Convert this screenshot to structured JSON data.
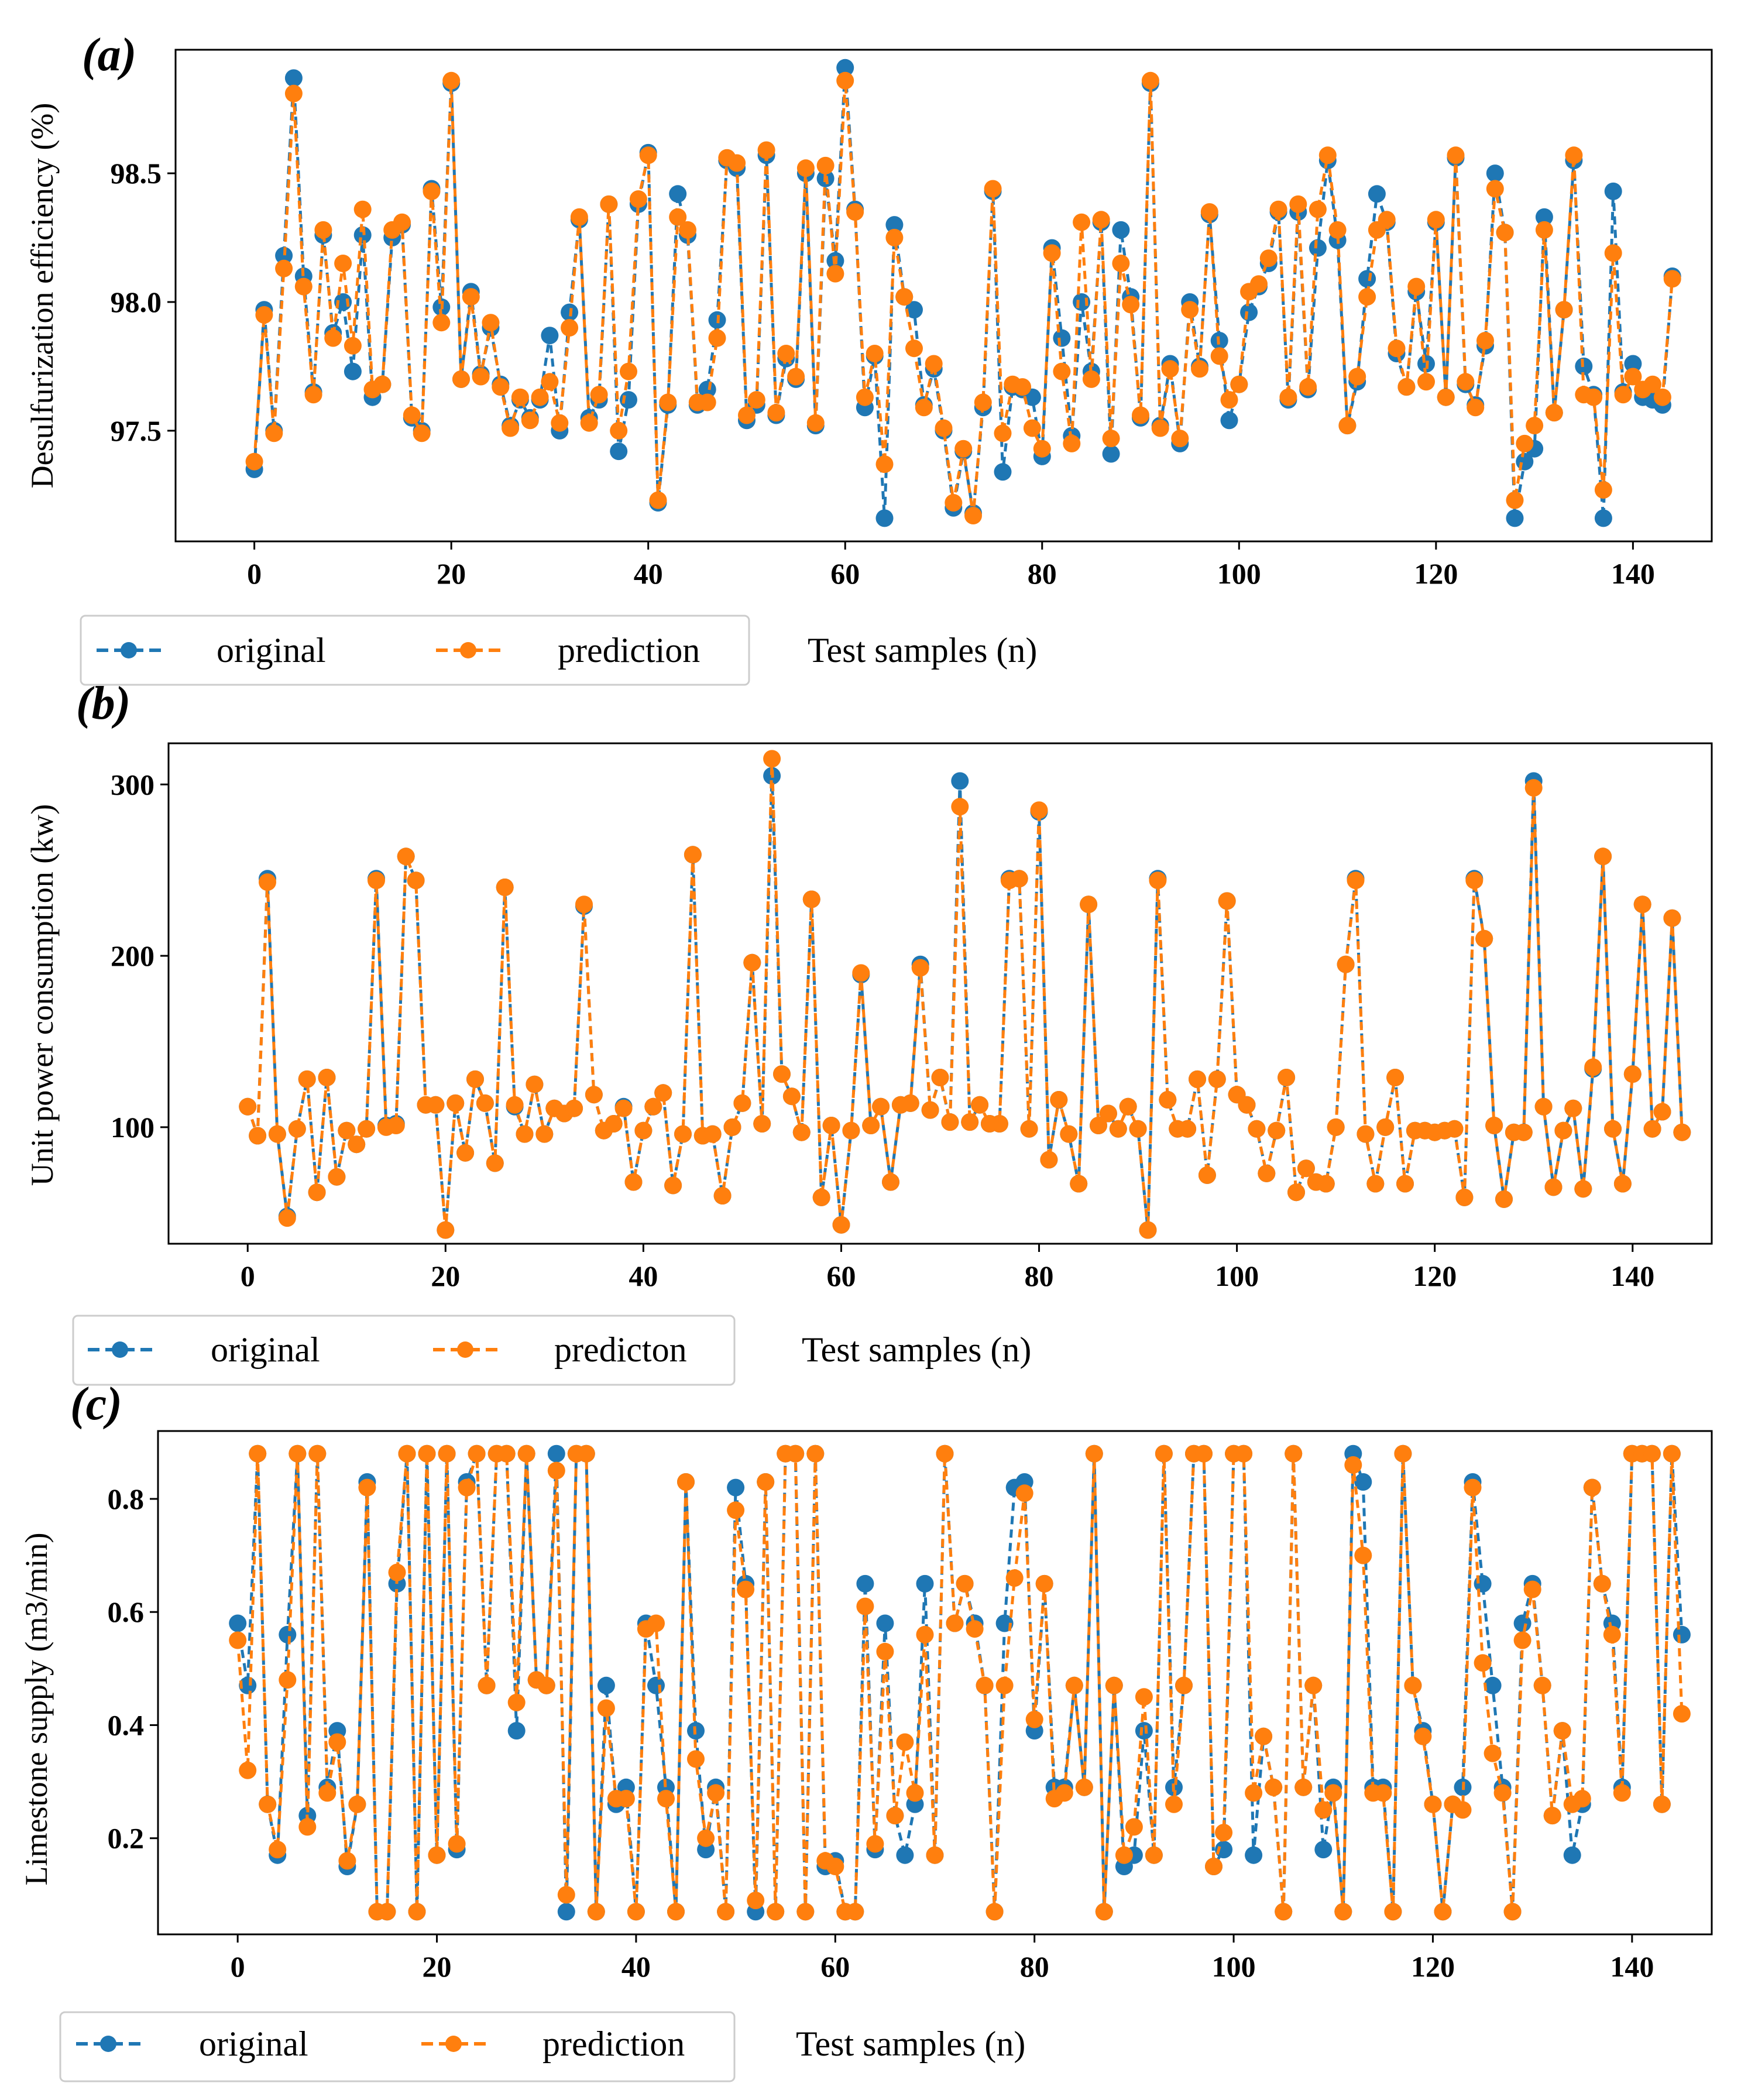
{
  "colors": {
    "original": "#1f77b4",
    "prediction": "#ff7f0e"
  },
  "chart_data": [
    {
      "panel": "(a)",
      "type": "line",
      "xlabel": "Test samples (n)",
      "ylabel": "Desulfurization efficiency (%)",
      "xlim": [
        -8,
        148
      ],
      "ylim": [
        97.07,
        98.98
      ],
      "xticks": [
        0,
        20,
        40,
        60,
        80,
        100,
        120,
        140
      ],
      "yticks": [
        97.5,
        98.0,
        98.5
      ],
      "ytick_labels": [
        "97.5",
        "98.0",
        "98.5"
      ],
      "legend": [
        "original",
        "prediction"
      ],
      "legend_placement": "below-left",
      "series": [
        {
          "name": "original",
          "values": [
            97.35,
            97.97,
            97.5,
            98.18,
            98.87,
            98.1,
            97.65,
            98.26,
            97.88,
            98.0,
            97.73,
            98.26,
            97.63,
            97.68,
            98.25,
            98.3,
            97.55,
            97.5,
            98.44,
            97.98,
            98.85,
            97.7,
            98.04,
            97.72,
            97.9,
            97.68,
            97.52,
            97.62,
            97.55,
            97.62,
            97.87,
            97.5,
            97.96,
            98.32,
            97.55,
            97.62,
            98.38,
            97.42,
            97.62,
            98.38,
            98.58,
            97.22,
            97.6,
            98.42,
            98.26,
            97.6,
            97.66,
            97.93,
            98.55,
            98.52,
            97.54,
            97.6,
            98.57,
            97.56,
            97.78,
            97.7,
            98.5,
            97.52,
            98.48,
            98.16,
            98.91,
            98.36,
            97.59,
            97.79,
            97.16,
            98.3,
            98.02,
            97.97,
            97.6,
            97.74,
            97.5,
            97.2,
            97.42,
            97.18,
            97.59,
            98.43,
            97.34,
            97.67,
            97.66,
            97.63,
            97.4,
            98.21,
            97.86,
            97.48,
            98.0,
            97.73,
            98.31,
            97.41,
            98.28,
            98.02,
            97.55,
            98.85,
            97.52,
            97.76,
            97.45,
            98.0,
            97.75,
            98.34,
            97.85,
            97.54,
            97.68,
            97.96,
            98.06,
            98.15,
            98.35,
            97.62,
            98.35,
            97.66,
            98.21,
            98.55,
            98.24,
            97.52,
            97.69,
            98.09,
            98.42,
            98.31,
            97.8,
            97.67,
            98.04,
            97.76,
            98.31,
            97.63,
            98.56,
            97.68,
            97.6,
            97.83,
            98.5,
            98.27,
            97.16,
            97.38,
            97.43,
            98.33,
            97.57,
            97.97,
            98.55,
            97.75,
            97.64,
            97.16,
            98.43,
            97.65,
            97.76,
            97.63,
            97.62,
            97.6,
            98.1
          ]
        },
        {
          "name": "prediction",
          "values": [
            97.38,
            97.95,
            97.49,
            98.13,
            98.81,
            98.06,
            97.64,
            98.28,
            97.86,
            98.15,
            97.83,
            98.36,
            97.66,
            97.68,
            98.28,
            98.31,
            97.56,
            97.49,
            98.43,
            97.92,
            98.86,
            97.7,
            98.02,
            97.71,
            97.92,
            97.67,
            97.51,
            97.63,
            97.54,
            97.63,
            97.69,
            97.53,
            97.9,
            98.33,
            97.53,
            97.64,
            98.38,
            97.5,
            97.73,
            98.4,
            98.57,
            97.23,
            97.61,
            98.33,
            98.28,
            97.61,
            97.61,
            97.86,
            98.56,
            98.54,
            97.56,
            97.62,
            98.59,
            97.57,
            97.8,
            97.71,
            98.52,
            97.53,
            98.53,
            98.11,
            98.86,
            98.35,
            97.63,
            97.8,
            97.37,
            98.25,
            98.02,
            97.82,
            97.59,
            97.76,
            97.51,
            97.22,
            97.43,
            97.17,
            97.61,
            98.44,
            97.49,
            97.68,
            97.67,
            97.51,
            97.43,
            98.19,
            97.73,
            97.45,
            98.31,
            97.7,
            98.32,
            97.47,
            98.15,
            97.99,
            97.56,
            98.86,
            97.51,
            97.74,
            97.47,
            97.97,
            97.74,
            98.35,
            97.79,
            97.62,
            97.68,
            98.04,
            98.07,
            98.17,
            98.36,
            97.63,
            98.38,
            97.67,
            98.36,
            98.57,
            98.28,
            97.52,
            97.71,
            98.02,
            98.28,
            98.32,
            97.82,
            97.67,
            98.06,
            97.69,
            98.32,
            97.63,
            98.57,
            97.69,
            97.59,
            97.85,
            98.44,
            98.27,
            97.23,
            97.45,
            97.52,
            98.28,
            97.57,
            97.97,
            98.57,
            97.64,
            97.63,
            97.27,
            98.19,
            97.64,
            97.71,
            97.66,
            97.68,
            97.63,
            98.09
          ]
        }
      ]
    },
    {
      "panel": "(b)",
      "type": "line",
      "xlabel": "Test samples (n)",
      "ylabel": "Unit power consumption (kw)",
      "xlim": [
        -8,
        148
      ],
      "ylim": [
        32,
        324
      ],
      "xticks": [
        0,
        20,
        40,
        60,
        80,
        100,
        120,
        140
      ],
      "yticks": [
        100,
        200,
        300
      ],
      "ytick_labels": [
        "100",
        "200",
        "300"
      ],
      "legend": [
        "original",
        "predicton"
      ],
      "legend_placement": "below-left",
      "series": [
        {
          "name": "original",
          "values": [
            112,
            95,
            245,
            96,
            48,
            99,
            128,
            62,
            129,
            71,
            98,
            90,
            99,
            245,
            101,
            102,
            258,
            244,
            113,
            113,
            40,
            114,
            85,
            128,
            114,
            79,
            240,
            112,
            96,
            125,
            96,
            111,
            108,
            111,
            229,
            119,
            98,
            102,
            112,
            68,
            98,
            112,
            120,
            66,
            96,
            259,
            95,
            96,
            60,
            100,
            114,
            196,
            102,
            305,
            131,
            118,
            97,
            233,
            59,
            101,
            43,
            98,
            189,
            101,
            112,
            68,
            113,
            114,
            195,
            110,
            129,
            103,
            302,
            103,
            113,
            102,
            102,
            245,
            245,
            99,
            284,
            81,
            116,
            96,
            67,
            230,
            101,
            108,
            99,
            112,
            99,
            40,
            245,
            116,
            99,
            99,
            128,
            72,
            128,
            232,
            119,
            113,
            99,
            73,
            98,
            129,
            62,
            76,
            68,
            67,
            100,
            195,
            245,
            96,
            67,
            100,
            129,
            67,
            98,
            98,
            97,
            98,
            99,
            59,
            245,
            210,
            101,
            58,
            97,
            97,
            302,
            112,
            65,
            98,
            111,
            64,
            134,
            258,
            99,
            67,
            131,
            230,
            99,
            109,
            222,
            97
          ]
        },
        {
          "name": "prediction",
          "values": [
            112,
            95,
            243,
            96,
            47,
            99,
            128,
            62,
            129,
            71,
            98,
            90,
            99,
            244,
            100,
            101,
            258,
            244,
            113,
            113,
            40,
            114,
            85,
            128,
            114,
            79,
            240,
            113,
            96,
            125,
            96,
            111,
            108,
            111,
            230,
            119,
            98,
            102,
            111,
            68,
            98,
            112,
            120,
            66,
            96,
            259,
            95,
            96,
            60,
            100,
            114,
            196,
            102,
            315,
            131,
            118,
            97,
            233,
            59,
            101,
            43,
            98,
            190,
            101,
            112,
            68,
            113,
            114,
            193,
            110,
            129,
            103,
            287,
            103,
            113,
            102,
            102,
            244,
            245,
            99,
            285,
            81,
            116,
            96,
            67,
            230,
            101,
            108,
            99,
            112,
            99,
            40,
            244,
            116,
            99,
            99,
            128,
            72,
            128,
            232,
            119,
            113,
            99,
            73,
            98,
            129,
            62,
            76,
            68,
            67,
            100,
            195,
            244,
            96,
            67,
            100,
            129,
            67,
            98,
            98,
            97,
            98,
            99,
            59,
            244,
            210,
            101,
            58,
            97,
            97,
            298,
            112,
            65,
            98,
            111,
            64,
            135,
            258,
            99,
            67,
            131,
            230,
            99,
            109,
            222,
            97
          ]
        }
      ]
    },
    {
      "panel": "(c)",
      "type": "line",
      "xlabel": "Test samples (n)",
      "ylabel": "Limestone supply (m3/min)",
      "xlim": [
        -8,
        148
      ],
      "ylim": [
        0.03,
        0.92
      ],
      "xticks": [
        0,
        20,
        40,
        60,
        80,
        100,
        120,
        140
      ],
      "yticks": [
        0.2,
        0.4,
        0.6,
        0.8
      ],
      "ytick_labels": [
        "0.2",
        "0.4",
        "0.6",
        "0.8"
      ],
      "legend": [
        "original",
        "prediction"
      ],
      "legend_placement": "below-left",
      "series": [
        {
          "name": "original",
          "values": [
            0.58,
            0.47,
            0.88,
            0.26,
            0.17,
            0.56,
            0.88,
            0.24,
            0.88,
            0.29,
            0.39,
            0.15,
            0.26,
            0.83,
            0.07,
            0.07,
            0.65,
            0.88,
            0.07,
            0.88,
            0.17,
            0.88,
            0.18,
            0.83,
            0.88,
            0.47,
            0.88,
            0.88,
            0.39,
            0.88,
            0.48,
            0.47,
            0.88,
            0.07,
            0.88,
            0.88,
            0.07,
            0.47,
            0.26,
            0.29,
            0.07,
            0.58,
            0.47,
            0.29,
            0.07,
            0.83,
            0.39,
            0.18,
            0.29,
            0.07,
            0.82,
            0.65,
            0.07,
            0.83,
            0.07,
            0.88,
            0.88,
            0.07,
            0.88,
            0.15,
            0.16,
            0.07,
            0.07,
            0.65,
            0.18,
            0.58,
            0.24,
            0.17,
            0.26,
            0.65,
            0.17,
            0.88,
            0.58,
            0.65,
            0.58,
            0.47,
            0.07,
            0.58,
            0.82,
            0.83,
            0.39,
            0.65,
            0.29,
            0.29,
            0.47,
            0.29,
            0.88,
            0.07,
            0.47,
            0.15,
            0.17,
            0.39,
            0.17,
            0.88,
            0.29,
            0.47,
            0.88,
            0.88,
            0.15,
            0.18,
            0.88,
            0.88,
            0.17,
            0.38,
            0.29,
            0.07,
            0.88,
            0.29,
            0.47,
            0.18,
            0.29,
            0.07,
            0.88,
            0.83,
            0.29,
            0.29,
            0.07,
            0.88,
            0.47,
            0.39,
            0.26,
            0.07,
            0.26,
            0.29,
            0.83,
            0.65,
            0.47,
            0.29,
            0.07,
            0.58,
            0.65,
            0.47,
            0.24,
            0.39,
            0.17,
            0.26,
            0.82,
            0.65,
            0.58,
            0.29,
            0.88,
            0.88,
            0.88,
            0.26,
            0.88,
            0.56
          ]
        },
        {
          "name": "prediction",
          "values": [
            0.55,
            0.32,
            0.88,
            0.26,
            0.18,
            0.48,
            0.88,
            0.22,
            0.88,
            0.28,
            0.37,
            0.16,
            0.26,
            0.82,
            0.07,
            0.07,
            0.67,
            0.88,
            0.07,
            0.88,
            0.17,
            0.88,
            0.19,
            0.82,
            0.88,
            0.47,
            0.88,
            0.88,
            0.44,
            0.88,
            0.48,
            0.47,
            0.85,
            0.1,
            0.88,
            0.88,
            0.07,
            0.43,
            0.27,
            0.27,
            0.07,
            0.57,
            0.58,
            0.27,
            0.07,
            0.83,
            0.34,
            0.2,
            0.28,
            0.07,
            0.78,
            0.64,
            0.09,
            0.83,
            0.07,
            0.88,
            0.88,
            0.07,
            0.88,
            0.16,
            0.15,
            0.07,
            0.07,
            0.61,
            0.19,
            0.53,
            0.24,
            0.37,
            0.28,
            0.56,
            0.17,
            0.88,
            0.58,
            0.65,
            0.57,
            0.47,
            0.07,
            0.47,
            0.66,
            0.81,
            0.41,
            0.65,
            0.27,
            0.28,
            0.47,
            0.29,
            0.88,
            0.07,
            0.47,
            0.17,
            0.22,
            0.45,
            0.17,
            0.88,
            0.26,
            0.47,
            0.88,
            0.88,
            0.15,
            0.21,
            0.88,
            0.88,
            0.28,
            0.38,
            0.29,
            0.07,
            0.88,
            0.29,
            0.47,
            0.25,
            0.28,
            0.07,
            0.86,
            0.7,
            0.28,
            0.28,
            0.07,
            0.88,
            0.47,
            0.38,
            0.26,
            0.07,
            0.26,
            0.25,
            0.82,
            0.51,
            0.35,
            0.28,
            0.07,
            0.55,
            0.64,
            0.47,
            0.24,
            0.39,
            0.26,
            0.27,
            0.82,
            0.65,
            0.56,
            0.28,
            0.88,
            0.88,
            0.88,
            0.26,
            0.88,
            0.42
          ]
        }
      ]
    }
  ]
}
